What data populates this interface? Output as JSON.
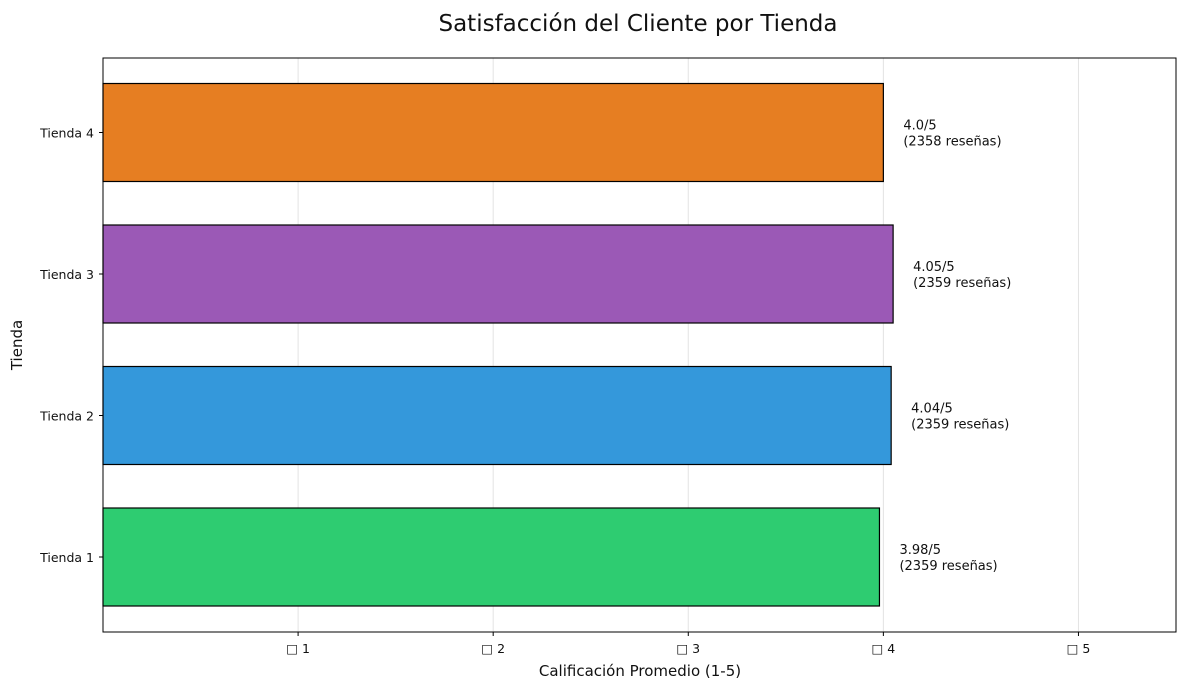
{
  "chart_data": {
    "type": "bar",
    "orientation": "horizontal",
    "title": "Satisfacción del Cliente por Tienda",
    "xlabel": "Calificación Promedio (1-5)",
    "ylabel": "Tienda",
    "xlim": [
      0,
      5.5
    ],
    "x_ticks": [
      1,
      2,
      3,
      4,
      5
    ],
    "x_tick_labels": [
      "□ 1",
      "□ 2",
      "□ 3",
      "□ 4",
      "□ 5"
    ],
    "grid": "vertical",
    "categories": [
      "Tienda 1",
      "Tienda 2",
      "Tienda 3",
      "Tienda 4"
    ],
    "values": [
      3.98,
      4.04,
      4.05,
      4.0
    ],
    "data_labels": [
      [
        "3.98/5",
        "(2359 reseñas)"
      ],
      [
        "4.04/5",
        "(2359 reseñas)"
      ],
      [
        "4.05/5",
        "(2359 reseñas)"
      ],
      [
        "4.0/5",
        "(2358 reseñas)"
      ]
    ],
    "colors": [
      "#2ecc71",
      "#3498db",
      "#9b59b6",
      "#e67e22"
    ]
  }
}
